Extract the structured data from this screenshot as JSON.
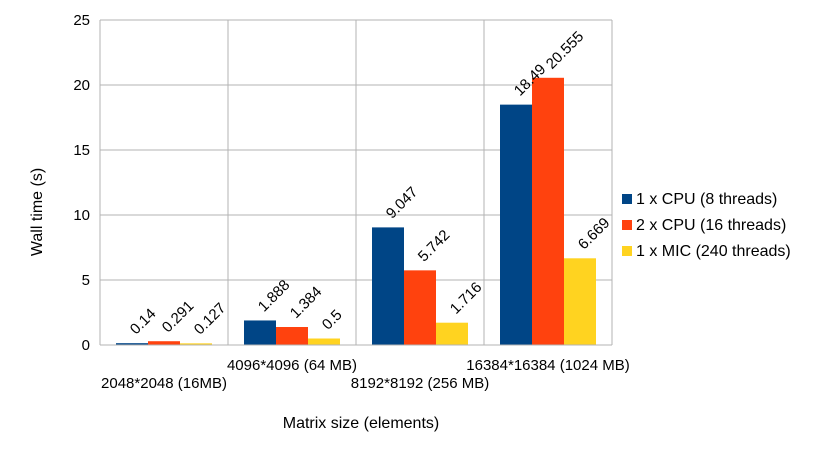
{
  "chart_data": {
    "type": "bar",
    "title": "",
    "xlabel": "Matrix size (elements)",
    "ylabel": "Wall time (s)",
    "categories": [
      "2048*2048 (16MB)",
      "4096*4096 (64 MB)",
      "8192*8192 (256 MB)",
      "16384*16384 (1024 MB)"
    ],
    "series": [
      {
        "name": "1 x CPU (8 threads)",
        "color": "#004586",
        "values": [
          0.14,
          1.888,
          9.047,
          18.49
        ],
        "labels": [
          "0.14",
          "1.888",
          "9.047",
          "18.49"
        ]
      },
      {
        "name": "2 x CPU (16 threads)",
        "color": "#ff420e",
        "values": [
          0.291,
          1.384,
          5.742,
          20.555
        ],
        "labels": [
          "0.291",
          "1.384",
          "5.742",
          "20.555"
        ]
      },
      {
        "name": "1 x MIC (240 threads)",
        "color": "#ffd320",
        "values": [
          0.127,
          0.5,
          1.716,
          6.669
        ],
        "labels": [
          "0.127",
          "0.5",
          "1.716",
          "6.669"
        ]
      }
    ],
    "ylim": [
      0,
      25
    ],
    "yticks": [
      "0",
      "5",
      "10",
      "15",
      "20",
      "25"
    ],
    "grid": true,
    "legend_position": "right"
  }
}
